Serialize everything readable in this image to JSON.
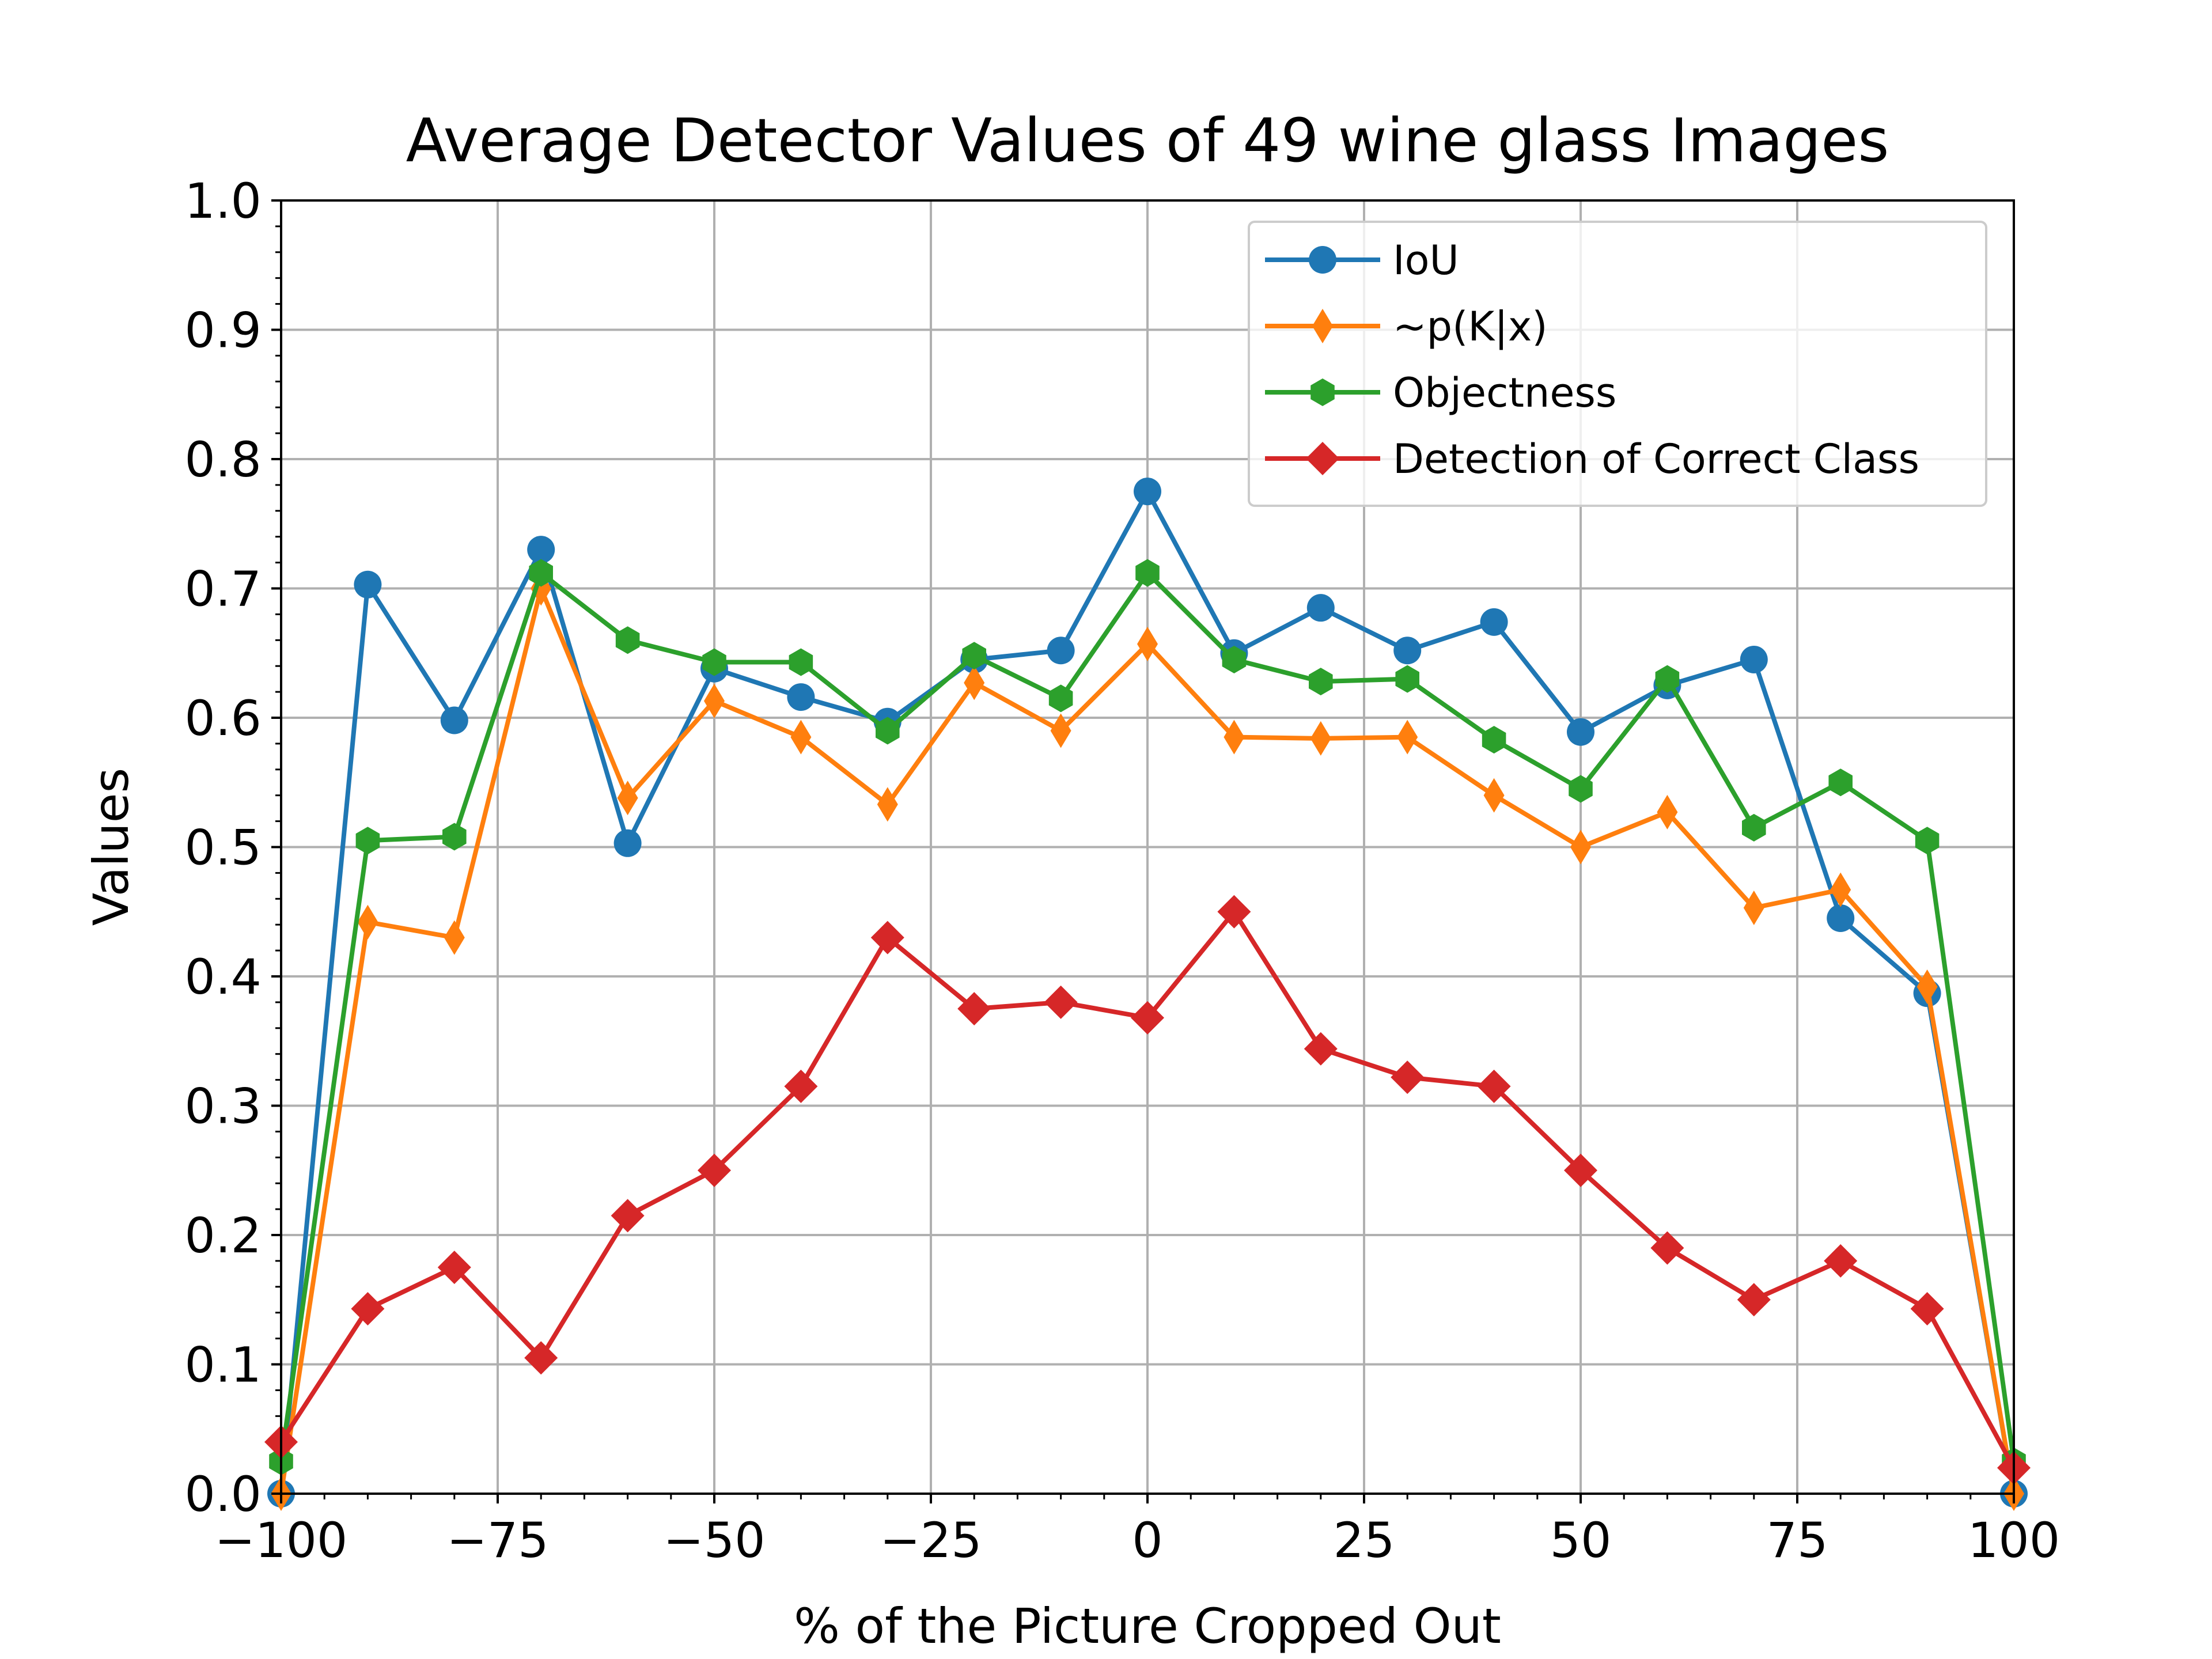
{
  "chart_data": {
    "type": "line",
    "title": "Average Detector Values of 49 wine glass Images",
    "xlabel": "% of the Picture Cropped Out",
    "ylabel": "Values",
    "xlim": [
      -100,
      100
    ],
    "ylim": [
      0,
      1
    ],
    "grid": true,
    "legend_position": "top-right",
    "x_ticks": [
      -100,
      -75,
      -50,
      -25,
      0,
      25,
      50,
      75,
      100
    ],
    "x_tick_labels": [
      "−100",
      "−75",
      "−50",
      "−25",
      "0",
      "25",
      "50",
      "75",
      "100"
    ],
    "y_ticks": [
      0,
      0.1,
      0.2,
      0.3,
      0.4,
      0.5,
      0.6,
      0.7,
      0.8,
      0.9,
      1.0
    ],
    "y_tick_labels": [
      "0.0",
      "0.1",
      "0.2",
      "0.3",
      "0.4",
      "0.5",
      "0.6",
      "0.7",
      "0.8",
      "0.9",
      "1.0"
    ],
    "x": [
      -100,
      -90,
      -80,
      -70,
      -60,
      -50,
      -40,
      -30,
      -20,
      -10,
      0,
      10,
      20,
      30,
      40,
      50,
      60,
      70,
      80,
      90,
      100
    ],
    "series": [
      {
        "name": "IoU",
        "color": "#1f77b4",
        "marker": "circle",
        "values": [
          0.0,
          0.703,
          0.598,
          0.73,
          0.503,
          0.638,
          0.616,
          0.597,
          0.645,
          0.652,
          0.775,
          0.65,
          0.685,
          0.652,
          0.674,
          0.589,
          0.625,
          0.645,
          0.445,
          0.387,
          0.0
        ]
      },
      {
        "name": "~p(K|x)",
        "color": "#ff7f0e",
        "marker": "thin-diamond",
        "values": [
          0.0,
          0.442,
          0.43,
          0.7,
          0.538,
          0.613,
          0.585,
          0.533,
          0.627,
          0.59,
          0.657,
          0.585,
          0.584,
          0.585,
          0.54,
          0.5,
          0.527,
          0.453,
          0.467,
          0.392,
          0.0
        ]
      },
      {
        "name": "Objectness",
        "color": "#2ca02c",
        "marker": "hexagon",
        "values": [
          0.025,
          0.505,
          0.508,
          0.712,
          0.66,
          0.643,
          0.643,
          0.59,
          0.648,
          0.615,
          0.712,
          0.645,
          0.628,
          0.63,
          0.583,
          0.545,
          0.63,
          0.515,
          0.55,
          0.505,
          0.025
        ]
      },
      {
        "name": "Detection of Correct Class",
        "color": "#d62728",
        "marker": "diamond",
        "values": [
          0.04,
          0.143,
          0.175,
          0.105,
          0.215,
          0.25,
          0.315,
          0.43,
          0.375,
          0.38,
          0.368,
          0.45,
          0.344,
          0.322,
          0.315,
          0.25,
          0.19,
          0.15,
          0.18,
          0.143,
          0.02
        ]
      }
    ]
  }
}
